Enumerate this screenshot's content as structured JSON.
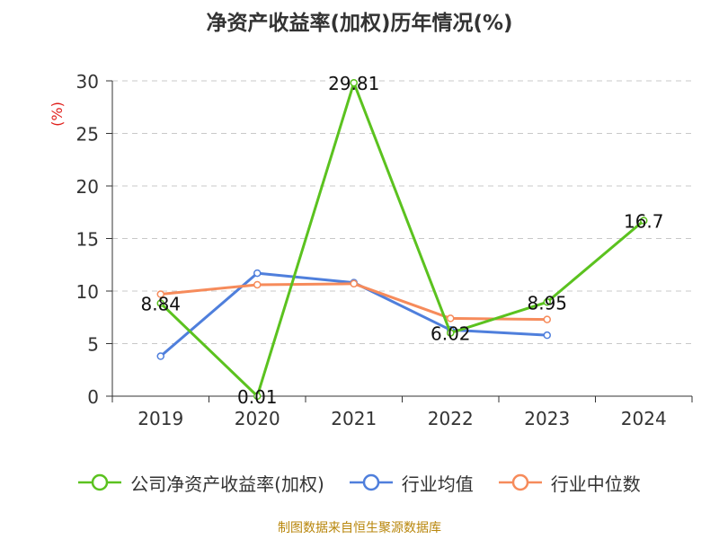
{
  "title": "净资产收益率(加权)历年情况(%)",
  "source": "制图数据来自恒生聚源数据库",
  "chart_data": {
    "type": "line",
    "title": "净资产收益率(加权)历年情况(%)",
    "ylabel": "(%)",
    "xlabel": "",
    "categories": [
      "2019",
      "2020",
      "2021",
      "2022",
      "2023",
      "2024"
    ],
    "ylim": [
      0,
      30
    ],
    "yticks": [
      0,
      5,
      10,
      15,
      20,
      25,
      30
    ],
    "grid": "horizontal dashed",
    "legend_position": "bottom",
    "series": [
      {
        "name": "公司净资产收益率(加权)",
        "color": "#5bc21f",
        "values": [
          8.84,
          0.01,
          29.81,
          6.02,
          8.95,
          16.7
        ],
        "data_labels": [
          "8.84",
          "0.01",
          "29.81",
          "6.02",
          "8.95",
          "16.7"
        ]
      },
      {
        "name": "行业均值",
        "color": "#4f7fdc",
        "values": [
          3.8,
          11.7,
          10.8,
          6.3,
          5.8,
          null
        ]
      },
      {
        "name": "行业中位数",
        "color": "#f68b5b",
        "values": [
          9.7,
          10.6,
          10.7,
          7.4,
          7.3,
          null
        ]
      }
    ]
  }
}
